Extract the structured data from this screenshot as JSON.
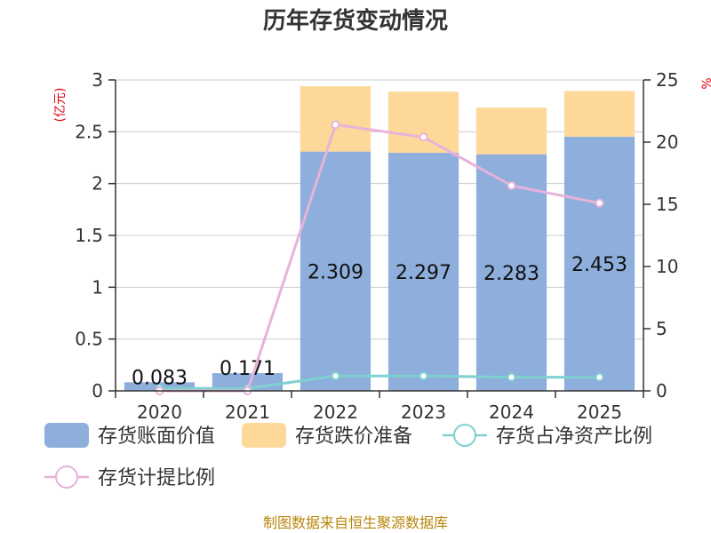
{
  "chart_data": {
    "type": "bar",
    "title": "历年存货变动情况",
    "categories": [
      "2020",
      "2021",
      "2022",
      "2023",
      "2024",
      "2025"
    ],
    "left_unit": "(亿元)",
    "right_unit": "%",
    "ylim": [
      0,
      3
    ],
    "y_ticks": [
      "0",
      "0.5",
      "1",
      "1.5",
      "2",
      "2.5",
      "3"
    ],
    "y2lim": [
      0,
      25
    ],
    "y2_ticks": [
      "0",
      "5",
      "10",
      "15",
      "20",
      "25"
    ],
    "grid": true,
    "legend_position": "bottom",
    "series": [
      {
        "name": "存货账面价值",
        "type": "bar",
        "stack": "inv",
        "color": "#8eaedc",
        "values": [
          0.083,
          0.171,
          2.309,
          2.297,
          2.283,
          2.453
        ],
        "labels": [
          "0.083",
          "0.171",
          "2.309",
          "2.297",
          "2.283",
          "2.453"
        ]
      },
      {
        "name": "存货跌价准备",
        "type": "bar",
        "stack": "inv",
        "color": "#fdd899",
        "values": [
          0,
          0,
          0.63,
          0.59,
          0.45,
          0.44
        ]
      },
      {
        "name": "存货占净资产比例",
        "type": "line",
        "axis": "right",
        "color": "#7fd0d0",
        "values": [
          0.2,
          0.2,
          1.2,
          1.2,
          1.1,
          1.1
        ]
      },
      {
        "name": "存货计提比例",
        "type": "line",
        "axis": "right",
        "color": "#e6b3da",
        "values": [
          0,
          0,
          21.4,
          20.4,
          16.5,
          15.1
        ]
      }
    ]
  },
  "footer": {
    "source": "制图数据来自恒生聚源数据库"
  }
}
